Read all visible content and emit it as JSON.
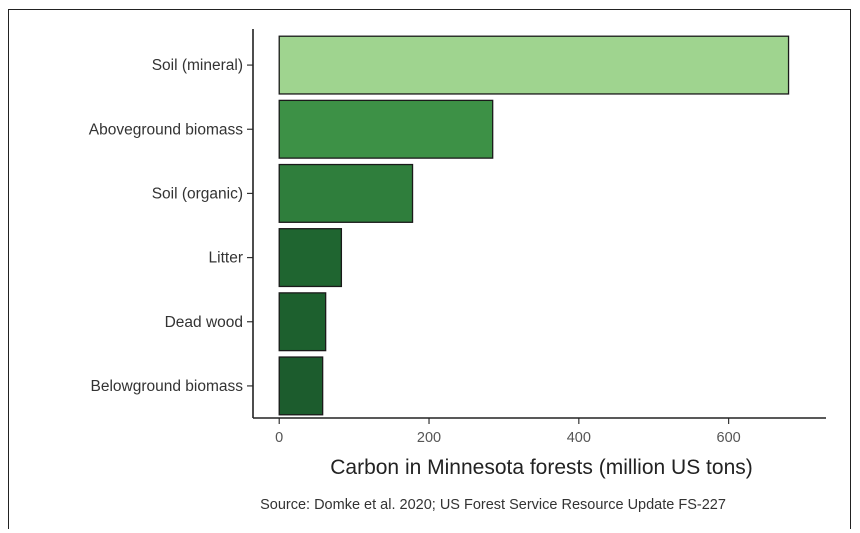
{
  "chart_data": {
    "type": "bar",
    "orientation": "horizontal",
    "categories": [
      "Soil (mineral)",
      "Aboveground biomass",
      "Soil (organic)",
      "Litter",
      "Dead wood",
      "Belowground biomass"
    ],
    "values": [
      680,
      285,
      178,
      83,
      62,
      58
    ],
    "colors": [
      "#9fd48f",
      "#3d9146",
      "#2f7e3c",
      "#1f6530",
      "#1d602e",
      "#1c5c2d"
    ],
    "xlabel": "Carbon in Minnesota forests (million US tons)",
    "ylabel": "",
    "xlim": [
      -35,
      730
    ],
    "xticks": [
      0,
      200,
      400,
      600
    ],
    "grid": false,
    "source": "Source: Domke et al. 2020; US Forest Service Resource Update FS-227"
  }
}
